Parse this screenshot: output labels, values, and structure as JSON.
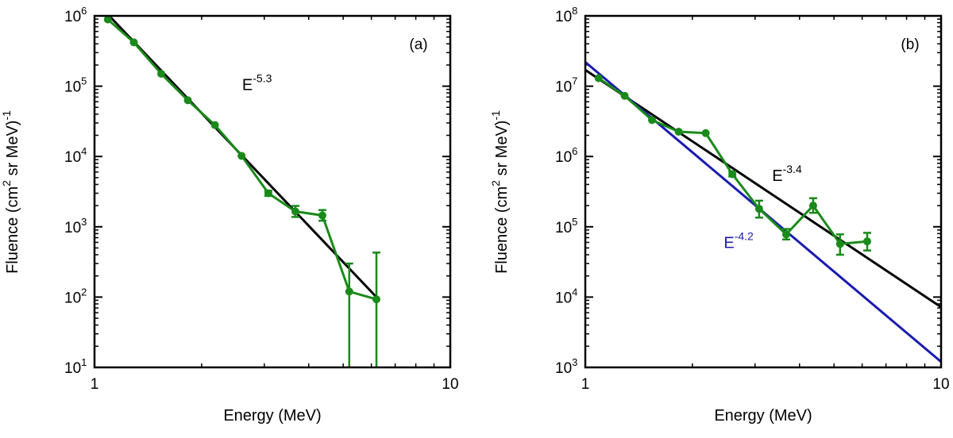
{
  "chart_data": [
    {
      "type": "line",
      "panel_label": "(a)",
      "xlabel": "Energy (MeV)",
      "ylabel_parts": [
        "Fluence (cm",
        "2",
        " sr MeV)",
        "-1"
      ],
      "xscale": "log",
      "yscale": "log",
      "xlim": [
        1,
        10
      ],
      "ylim": [
        10,
        1000000
      ],
      "x_ticks": [
        {
          "v": 1,
          "label": "1"
        },
        {
          "v": 10,
          "label": "10"
        }
      ],
      "y_ticks": [
        {
          "v": 10,
          "base": "10",
          "exp": "1"
        },
        {
          "v": 100,
          "base": "10",
          "exp": "2"
        },
        {
          "v": 1000,
          "base": "10",
          "exp": "3"
        },
        {
          "v": 10000,
          "base": "10",
          "exp": "4"
        },
        {
          "v": 100000,
          "base": "10",
          "exp": "5"
        },
        {
          "v": 1000000,
          "base": "10",
          "exp": "6"
        }
      ],
      "series": [
        {
          "name": "data",
          "color": "#1a8a1a",
          "x": [
            1.09,
            1.29,
            1.54,
            1.83,
            2.18,
            2.59,
            3.08,
            3.67,
            4.37,
            5.2,
            6.2
          ],
          "y": [
            890000,
            420000,
            150000,
            63000,
            28000,
            10200,
            3000,
            1650,
            1450,
            120,
            93
          ],
          "y_lo": [
            890000,
            420000,
            150000,
            63000,
            28000,
            10200,
            2750,
            1380,
            1220,
            10,
            10
          ],
          "y_hi": [
            890000,
            420000,
            150000,
            63000,
            28000,
            10200,
            3250,
            1980,
            1730,
            300,
            430
          ]
        }
      ],
      "fits": [
        {
          "name": "E^-5.3",
          "color": "#000000",
          "x_range": [
            1.1,
            6.2
          ],
          "y_range": [
            1000000,
            100
          ],
          "label_base": "E",
          "label_exp": "-5.3",
          "label_at": [
            2.6,
            88000
          ]
        }
      ]
    },
    {
      "type": "line",
      "panel_label": "(b)",
      "xlabel": "Energy (MeV)",
      "ylabel_parts": [
        "Fluence (cm",
        "2",
        " sr MeV)",
        "-1"
      ],
      "xscale": "log",
      "yscale": "log",
      "xlim": [
        1,
        10
      ],
      "ylim": [
        1000,
        100000000
      ],
      "x_ticks": [
        {
          "v": 1,
          "label": "1"
        },
        {
          "v": 10,
          "label": "10"
        }
      ],
      "y_ticks": [
        {
          "v": 1000,
          "base": "10",
          "exp": "3"
        },
        {
          "v": 10000,
          "base": "10",
          "exp": "4"
        },
        {
          "v": 100000,
          "base": "10",
          "exp": "5"
        },
        {
          "v": 1000000,
          "base": "10",
          "exp": "6"
        },
        {
          "v": 10000000,
          "base": "10",
          "exp": "7"
        },
        {
          "v": 100000000,
          "base": "10",
          "exp": "8"
        }
      ],
      "series": [
        {
          "name": "data",
          "color": "#1a8a1a",
          "x": [
            1.09,
            1.29,
            1.54,
            1.83,
            2.18,
            2.59,
            3.08,
            3.67,
            4.37,
            5.2,
            6.2
          ],
          "y": [
            13000000,
            7300000,
            3300000,
            2250000,
            2150000,
            560000,
            180000,
            78000,
            200000,
            57000,
            62000
          ],
          "y_lo": [
            13000000,
            7300000,
            3300000,
            2250000,
            2150000,
            520000,
            135000,
            66000,
            158000,
            40000,
            46000
          ],
          "y_hi": [
            13000000,
            7300000,
            3300000,
            2250000,
            2150000,
            610000,
            235000,
            93000,
            255000,
            78000,
            82000
          ]
        }
      ],
      "fits": [
        {
          "name": "E^-3.4",
          "color": "#000000",
          "x_range": [
            1,
            10
          ],
          "y_range": [
            17000000,
            7200
          ],
          "label_base": "E",
          "label_exp": "-3.4",
          "label_at": [
            3.35,
            450000
          ]
        },
        {
          "name": "E^-4.2",
          "color": "#1a1aaf",
          "x_range": [
            1,
            10
          ],
          "y_range": [
            22000000,
            1200
          ],
          "label_base": "E",
          "label_exp": "-4.2",
          "label_at": [
            2.45,
            50000
          ]
        }
      ]
    }
  ]
}
